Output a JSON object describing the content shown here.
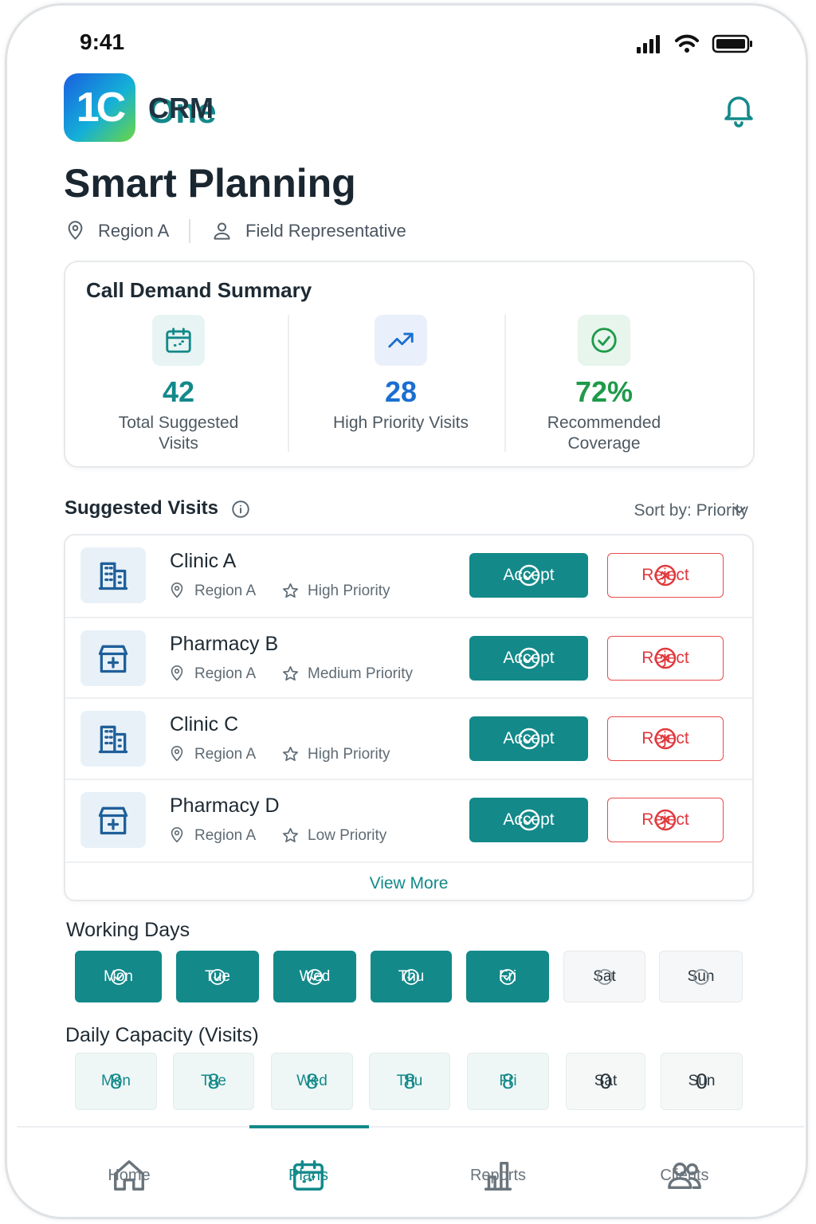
{
  "status": {
    "time": "9:41"
  },
  "app": {
    "logo": "1C",
    "name_one": "One",
    "name_crm": "CRM"
  },
  "header": {
    "title": "Smart Planning",
    "region": "Region A",
    "role": "Field Representative"
  },
  "summary": {
    "title": "Call Demand Summary",
    "stats": [
      {
        "value": "42",
        "label": "Total Suggested Visits"
      },
      {
        "value": "28",
        "label": "High Priority Visits"
      },
      {
        "value": "72%",
        "label": "Recommended Coverage"
      }
    ]
  },
  "suggested": {
    "title": "Suggested Visits",
    "sort": "Sort by: Priority",
    "accept": "Accept",
    "reject": "Reject",
    "visits": [
      {
        "name": "Clinic A",
        "region": "Region A",
        "priority": "High Priority"
      },
      {
        "name": "Pharmacy B",
        "region": "Region A",
        "priority": "Medium Priority"
      },
      {
        "name": "Clinic C",
        "region": "Region A",
        "priority": "High Priority"
      },
      {
        "name": "Pharmacy D",
        "region": "Region A",
        "priority": "Low Priority"
      }
    ],
    "view_more": "View More"
  },
  "working_days": {
    "title": "Working Days",
    "days": [
      {
        "label": "Mon",
        "active": true
      },
      {
        "label": "Tue",
        "active": true
      },
      {
        "label": "Wed",
        "active": true
      },
      {
        "label": "Thu",
        "active": true
      },
      {
        "label": "Fri",
        "active": true
      },
      {
        "label": "Sat",
        "active": false
      },
      {
        "label": "Sun",
        "active": false
      }
    ]
  },
  "capacity": {
    "title": "Daily Capacity (Visits)",
    "days": [
      {
        "label": "Mon",
        "value": 8
      },
      {
        "label": "Tue",
        "value": 8
      },
      {
        "label": "Wed",
        "value": 8
      },
      {
        "label": "Thu",
        "value": 8
      },
      {
        "label": "Fri",
        "value": 8
      },
      {
        "label": "Sat",
        "value": 0
      },
      {
        "label": "Sun",
        "value": 0
      }
    ]
  },
  "nav": {
    "items": [
      {
        "label": "Home",
        "active": false
      },
      {
        "label": "Plans",
        "active": true
      },
      {
        "label": "Reports",
        "active": false
      },
      {
        "label": "Clients",
        "active": false
      }
    ]
  }
}
